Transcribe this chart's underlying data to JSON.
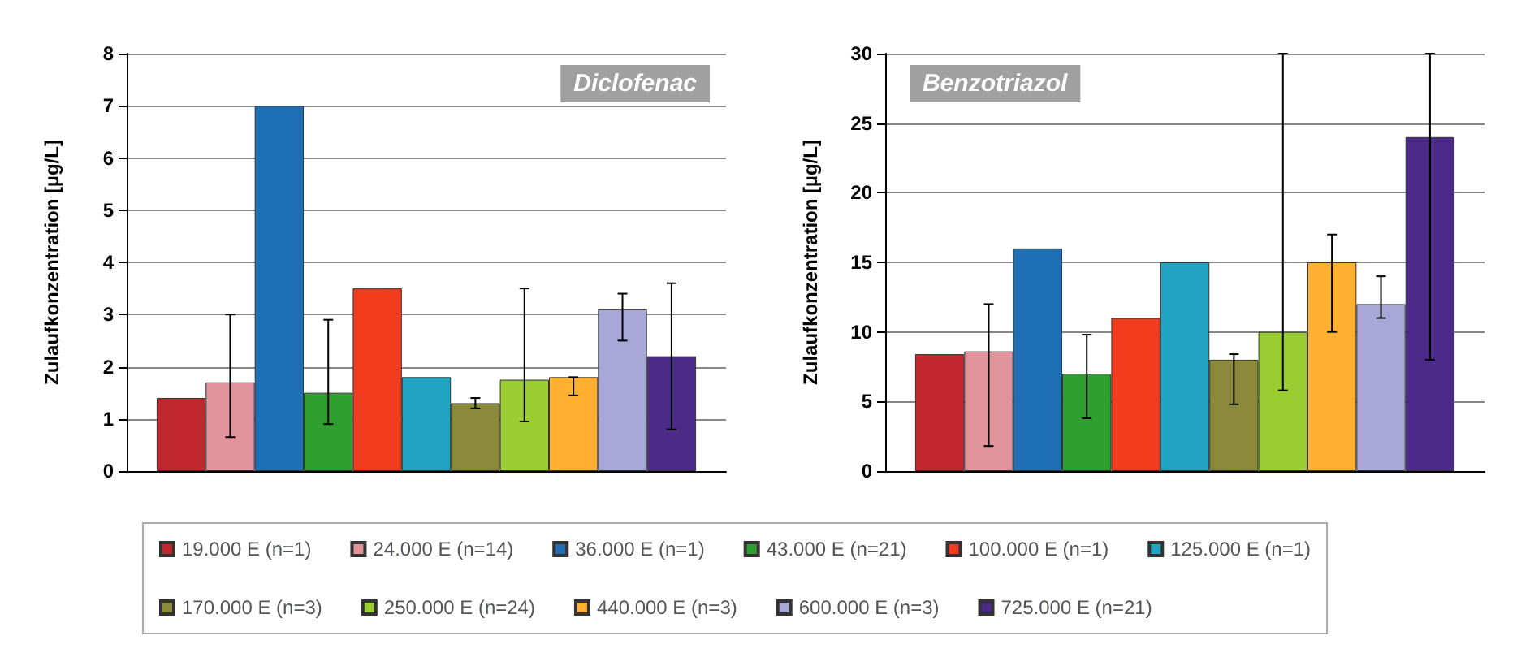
{
  "chart_data": [
    {
      "type": "bar",
      "title": "Diclofenac",
      "ylabel": "Zulaufkonzentration [µg/L]",
      "categories": [
        null
      ],
      "ylim": [
        0,
        8
      ],
      "yticks": [
        0,
        1,
        2,
        3,
        4,
        5,
        6,
        7,
        8
      ],
      "grid": "y",
      "legend": "bottom",
      "series": [
        {
          "name": "19.000 E (n=1)",
          "color": "#c0282d",
          "values": [
            1.4
          ]
        },
        {
          "name": "24.000 E (n=14)",
          "color": "#e0939a",
          "values": [
            1.7
          ],
          "errors": [
            [
              0.65,
              3.0
            ]
          ]
        },
        {
          "name": "36.000 E (n=1)",
          "color": "#1f6fb5",
          "values": [
            7.0
          ]
        },
        {
          "name": "43.000 E (n=21)",
          "color": "#2fa02f",
          "values": [
            1.5
          ],
          "errors": [
            [
              0.9,
              2.9
            ]
          ]
        },
        {
          "name": "100.000 E (n=1)",
          "color": "#f23c1e",
          "values": [
            3.5
          ]
        },
        {
          "name": "125.000 E (n=1)",
          "color": "#21a3c2",
          "values": [
            1.8
          ]
        },
        {
          "name": "170.000 E (n=3)",
          "color": "#8a8a3a",
          "values": [
            1.3
          ],
          "errors": [
            [
              1.2,
              1.4
            ]
          ]
        },
        {
          "name": "250.000 E (n=24)",
          "color": "#9acd32",
          "values": [
            1.75
          ],
          "errors": [
            [
              0.95,
              3.5
            ]
          ]
        },
        {
          "name": "440.000 E (n=3)",
          "color": "#ffb030",
          "values": [
            1.8
          ],
          "errors": [
            [
              1.45,
              1.8
            ]
          ]
        },
        {
          "name": "600.000 E (n=3)",
          "color": "#a8a8d8",
          "values": [
            3.1
          ],
          "errors": [
            [
              2.5,
              3.4
            ]
          ]
        },
        {
          "name": "725.000 E (n=21)",
          "color": "#4b2a8a",
          "values": [
            2.2
          ],
          "errors": [
            [
              0.8,
              3.6
            ]
          ]
        }
      ]
    },
    {
      "type": "bar",
      "title": "Benzotriazol",
      "ylabel": "Zulaufkonzentration [µg/L]",
      "categories": [
        null
      ],
      "ylim": [
        0,
        30
      ],
      "yticks": [
        0,
        5,
        10,
        15,
        20,
        25,
        30
      ],
      "grid": "y",
      "series": [
        {
          "color": "#c0282d",
          "values": [
            8.4
          ]
        },
        {
          "color": "#e0939a",
          "values": [
            8.6
          ],
          "errors": [
            [
              1.8,
              12
            ]
          ]
        },
        {
          "color": "#1f6fb5",
          "values": [
            16
          ]
        },
        {
          "color": "#2fa02f",
          "values": [
            7
          ],
          "errors": [
            [
              3.8,
              9.8
            ]
          ]
        },
        {
          "color": "#f23c1e",
          "values": [
            11
          ]
        },
        {
          "color": "#21a3c2",
          "values": [
            15
          ]
        },
        {
          "color": "#8a8a3a",
          "values": [
            8
          ],
          "errors": [
            [
              4.8,
              8.4
            ]
          ]
        },
        {
          "color": "#9acd32",
          "values": [
            10
          ],
          "errors": [
            [
              5.8,
              30
            ]
          ]
        },
        {
          "color": "#ffb030",
          "values": [
            15
          ],
          "errors": [
            [
              10,
              17
            ]
          ]
        },
        {
          "color": "#a8a8d8",
          "values": [
            12
          ],
          "errors": [
            [
              11,
              14
            ]
          ]
        },
        {
          "color": "#4b2a8a",
          "values": [
            24
          ],
          "errors": [
            [
              8,
              30
            ]
          ]
        }
      ]
    }
  ]
}
